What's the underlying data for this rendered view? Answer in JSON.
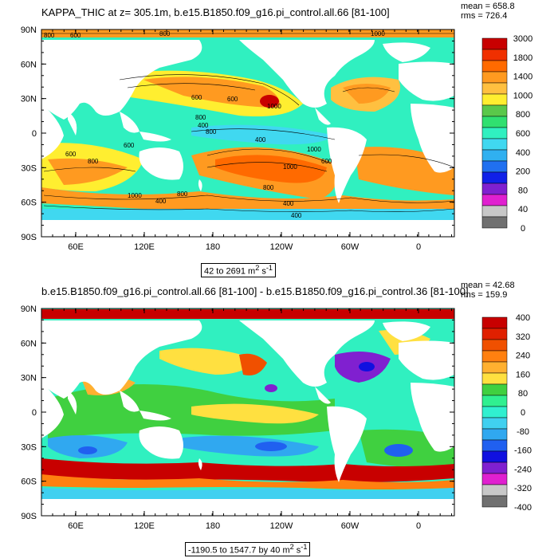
{
  "panel1": {
    "title": "KAPPA_THIC at z= 305.1m, b.e15.B1850.f09_g16.pi_control.all.66 [81-100]",
    "mean": "mean = 658.8",
    "rms": "rms = 726.4",
    "range_prefix": "42 to 2691 m",
    "range_sup1": "2",
    "range_mid": " s",
    "range_sup2": "-1",
    "colorbar_labels": [
      "3000",
      "1800",
      "1400",
      "1000",
      "800",
      "600",
      "400",
      "200",
      "80",
      "40",
      "0"
    ],
    "colorbar_colors": [
      "#c80000",
      "#f03000",
      "#ff6a00",
      "#ff9a20",
      "#ffc040",
      "#ffee30",
      "#5ac84a",
      "#30e070",
      "#30f0c0",
      "#40d8f0",
      "#30b0f0",
      "#2070f0",
      "#1020e8",
      "#8020d0",
      "#e020d0",
      "#c8c8c8",
      "#707070"
    ],
    "contour_labels": [
      "800",
      "600",
      "800",
      "600",
      "1000",
      "1000",
      "600",
      "800",
      "400",
      "800",
      "600",
      "400",
      "600",
      "800",
      "1000",
      "600",
      "800",
      "1000",
      "1000",
      "400",
      "400",
      "400",
      "800"
    ]
  },
  "panel2": {
    "title": "b.e15.B1850.f09_g16.pi_control.all.66 [81-100] - b.e15.B1850.f09_g16.pi_control.36 [81-100]",
    "mean": "mean = 42.68",
    "rms": "rms = 159.9",
    "range_prefix": "-1190.5 to 1547.7 by 40 m",
    "range_sup1": "2",
    "range_mid": " s",
    "range_sup2": "-1",
    "colorbar_labels": [
      "400",
      "320",
      "240",
      "160",
      "80",
      "0",
      "-80",
      "-160",
      "-240",
      "-320",
      "-400"
    ],
    "colorbar_colors": [
      "#c80000",
      "#e02000",
      "#f05000",
      "#ff8010",
      "#ffb030",
      "#ffe040",
      "#40d040",
      "#30f090",
      "#30f0d0",
      "#40d0f0",
      "#30a8f0",
      "#2060f0",
      "#1010e0",
      "#8020d0",
      "#e020d0",
      "#c8c8c8",
      "#707070"
    ]
  },
  "axes": {
    "lat_labels": [
      "90N",
      "60N",
      "30N",
      "0",
      "30S",
      "60S",
      "90S"
    ],
    "lon_labels": [
      "60E",
      "120E",
      "180",
      "120W",
      "60W",
      "0"
    ]
  }
}
